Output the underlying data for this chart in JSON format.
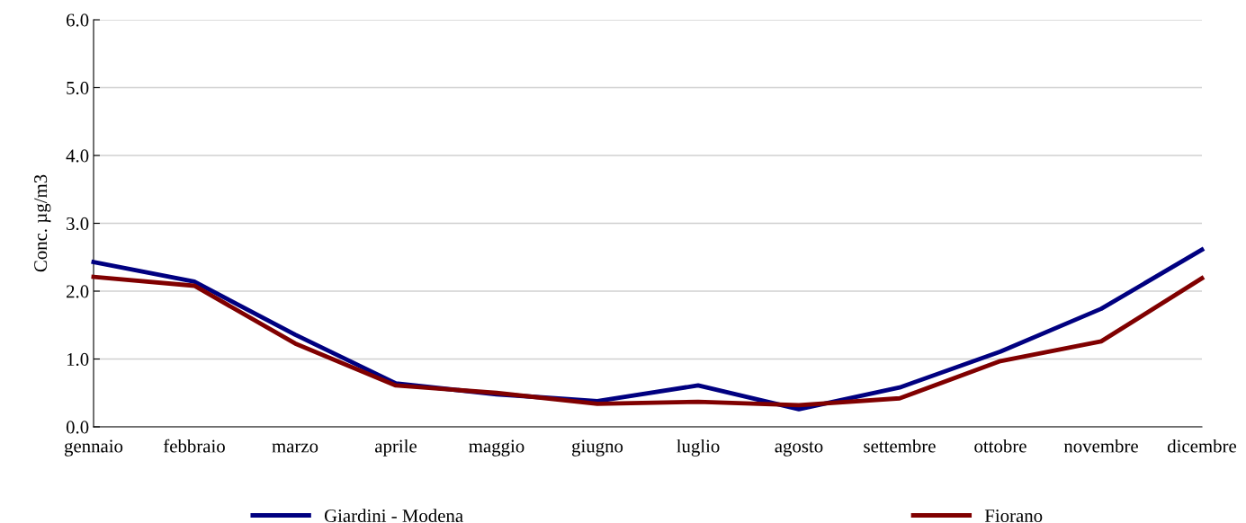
{
  "chart_data": {
    "type": "line",
    "ylabel": "Conc. µg/m3",
    "categories": [
      "gennaio",
      "febbraio",
      "marzo",
      "aprile",
      "maggio",
      "giugno",
      "luglio",
      "agosto",
      "settembre",
      "ottobre",
      "novembre",
      "dicembre"
    ],
    "series": [
      {
        "name": "Giardini - Modena",
        "color": "#000080",
        "values": [
          2.43,
          2.14,
          1.36,
          0.64,
          0.48,
          0.38,
          0.61,
          0.26,
          0.58,
          1.11,
          1.74,
          2.61
        ]
      },
      {
        "name": "Fiorano",
        "color": "#800000",
        "values": [
          2.21,
          2.08,
          1.23,
          0.61,
          0.5,
          0.34,
          0.37,
          0.32,
          0.42,
          0.97,
          1.26,
          2.19
        ]
      }
    ],
    "ylim": [
      0,
      6
    ],
    "yticks": [
      {
        "value": 0,
        "label": "0.0"
      },
      {
        "value": 1,
        "label": "1.0"
      },
      {
        "value": 2,
        "label": "2.0"
      },
      {
        "value": 3,
        "label": "3.0"
      },
      {
        "value": 4,
        "label": "4.0"
      },
      {
        "value": 5,
        "label": "5.0"
      },
      {
        "value": 6,
        "label": "6.0"
      }
    ],
    "grid": "y",
    "legend": "bottom",
    "marker": "none",
    "line_style": "solid"
  }
}
